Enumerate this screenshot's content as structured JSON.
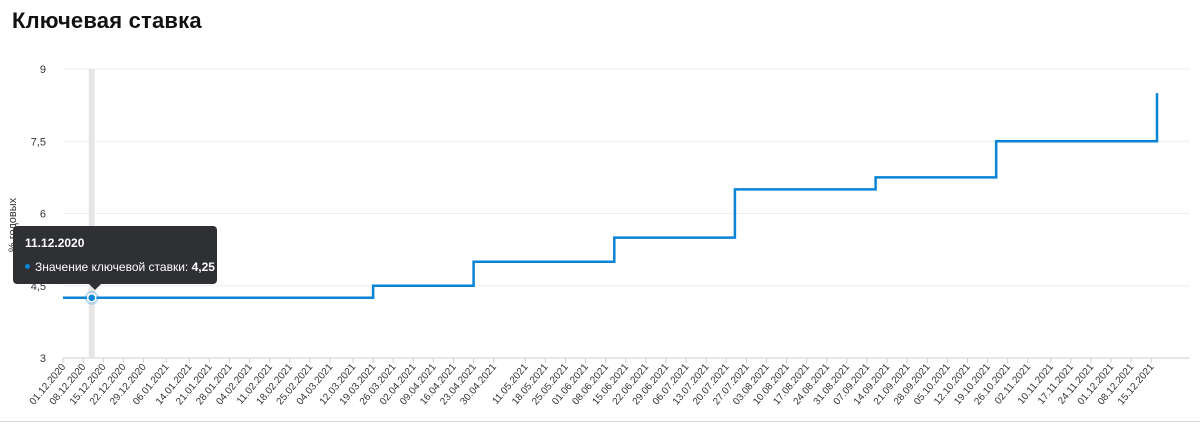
{
  "page": {
    "title": "Ключевая ставка"
  },
  "tooltip": {
    "date": "11.12.2020",
    "label": "Значение ключевой ставки:",
    "value": "4,25"
  },
  "colors": {
    "line": "#0a84d6",
    "grid": "#eeeeee",
    "text": "#333333",
    "tooltip_bg": "#2f3033"
  },
  "chart_data": {
    "type": "line",
    "title": "Ключевая ставка",
    "ylabel": "% годовых",
    "xlabel": "",
    "ylim": [
      3,
      9
    ],
    "yticks": [
      3,
      4.5,
      6,
      7.5,
      9
    ],
    "ytick_labels": [
      "3",
      "4,5",
      "6",
      "7,5",
      "9"
    ],
    "grid": true,
    "step": true,
    "categories": [
      "01.12.2020",
      "08.12.2020",
      "15.12.2020",
      "22.12.2020",
      "29.12.2020",
      "06.01.2021",
      "14.01.2021",
      "21.01.2021",
      "28.01.2021",
      "04.02.2021",
      "11.02.2021",
      "18.02.2021",
      "25.02.2021",
      "04.03.2021",
      "12.03.2021",
      "19.03.2021",
      "26.03.2021",
      "02.04.2021",
      "09.04.2021",
      "16.04.2021",
      "23.04.2021",
      "30.04.2021",
      "11.05.2021",
      "18.05.2021",
      "25.05.2021",
      "01.06.2021",
      "08.06.2021",
      "15.06.2021",
      "22.06.2021",
      "29.06.2021",
      "06.07.2021",
      "13.07.2021",
      "20.07.2021",
      "27.07.2021",
      "03.08.2021",
      "10.08.2021",
      "17.08.2021",
      "24.08.2021",
      "31.08.2021",
      "07.09.2021",
      "14.09.2021",
      "21.09.2021",
      "28.09.2021",
      "05.10.2021",
      "12.10.2021",
      "19.10.2021",
      "26.10.2021",
      "02.11.2021",
      "10.11.2021",
      "17.11.2021",
      "24.11.2021",
      "01.12.2021",
      "08.12.2021",
      "15.12.2021"
    ],
    "series": [
      {
        "name": "Значение ключевой ставки",
        "points": [
          {
            "x": "01.12.2020",
            "y": 4.25
          },
          {
            "x": "19.03.2021",
            "y": 4.25
          },
          {
            "x": "19.03.2021",
            "y": 4.5
          },
          {
            "x": "23.04.2021",
            "y": 4.5
          },
          {
            "x": "23.04.2021",
            "y": 5.0
          },
          {
            "x": "11.06.2021",
            "y": 5.0
          },
          {
            "x": "11.06.2021",
            "y": 5.5
          },
          {
            "x": "23.07.2021",
            "y": 5.5
          },
          {
            "x": "23.07.2021",
            "y": 6.5
          },
          {
            "x": "10.09.2021",
            "y": 6.5
          },
          {
            "x": "10.09.2021",
            "y": 6.75
          },
          {
            "x": "22.10.2021",
            "y": 6.75
          },
          {
            "x": "22.10.2021",
            "y": 7.5
          },
          {
            "x": "17.12.2021",
            "y": 7.5
          },
          {
            "x": "17.12.2021",
            "y": 8.5
          }
        ]
      }
    ],
    "highlight": {
      "x": "11.12.2020",
      "y": 4.25
    }
  }
}
